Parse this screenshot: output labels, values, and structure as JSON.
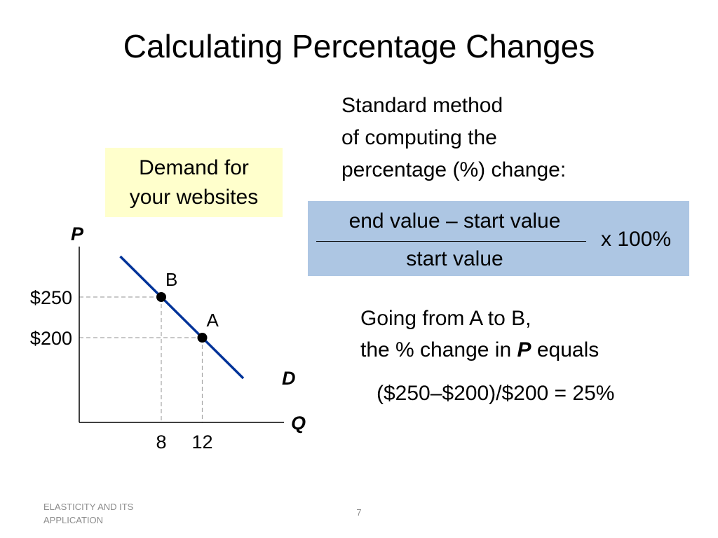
{
  "slide": {
    "title": "Calculating Percentage Changes",
    "std_method_lines": [
      "Standard method",
      "of computing the",
      "percentage (%) change:"
    ],
    "demand_box_lines": [
      "Demand for",
      "your websites"
    ],
    "formula": {
      "numerator": "end value – start value",
      "denominator": "start value",
      "multiplier": "x 100%"
    },
    "going": {
      "line1": "Going from A to B,",
      "line2_pre": "the % change in ",
      "line2_var": "P",
      "line2_post": " equals"
    },
    "calculation": "($250–$200)/$200 = 25%",
    "footer_lines": [
      "ELASTICITY AND ITS",
      "APPLICATION"
    ],
    "page_number": "7",
    "colors": {
      "demand_box_bg": "#ffffcc",
      "formula_box_bg": "#adc6e3",
      "demand_curve": "#003399",
      "guide_lines": "#a6a6a6"
    }
  },
  "chart_data": {
    "type": "line",
    "xlabel": "Q",
    "ylabel": "P",
    "x_ticks": [
      {
        "value": 8,
        "label": "8"
      },
      {
        "value": 12,
        "label": "12"
      }
    ],
    "y_ticks": [
      {
        "value": 250,
        "label": "$250"
      },
      {
        "value": 200,
        "label": "$200"
      }
    ],
    "series": [
      {
        "name": "D",
        "x": [
          4,
          16
        ],
        "y": [
          300,
          150
        ]
      }
    ],
    "points": [
      {
        "label": "B",
        "x": 8,
        "y": 250
      },
      {
        "label": "A",
        "x": 12,
        "y": 200
      }
    ],
    "xlim": [
      0,
      20
    ],
    "ylim": [
      100,
      310
    ],
    "grid": false
  }
}
